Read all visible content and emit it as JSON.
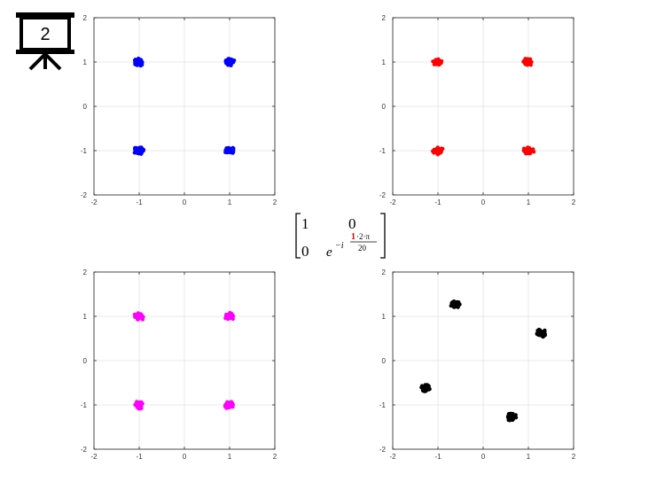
{
  "slide_badge": {
    "number": "2",
    "icon": "presentation-board-icon"
  },
  "matrix": {
    "a11": "1",
    "a12": "0",
    "a21": "0",
    "a22_base": "e",
    "a22_exp_prefix": "−i",
    "a22_exp_num_highlight": "1",
    "a22_exp_num_rest": "·2·π",
    "a22_exp_den": "20",
    "highlight_color": "#e00000"
  },
  "chart_data": [
    {
      "type": "scatter",
      "color": "#0000ff",
      "xlim": [
        -2,
        2
      ],
      "ylim": [
        -2,
        2
      ],
      "xticks": [
        "-2",
        "-1",
        "0",
        "1",
        "2"
      ],
      "yticks": [
        "2",
        "1",
        "0",
        "-1",
        "-2"
      ],
      "grid": true,
      "clusters": [
        {
          "x": -1,
          "y": 1
        },
        {
          "x": 1,
          "y": 1
        },
        {
          "x": -1,
          "y": -1
        },
        {
          "x": 1,
          "y": -1
        }
      ]
    },
    {
      "type": "scatter",
      "color": "#ff0000",
      "xlim": [
        -2,
        2
      ],
      "ylim": [
        -2,
        2
      ],
      "xticks": [
        "-2",
        "-1",
        "0",
        "1",
        "2"
      ],
      "yticks": [
        "2",
        "1",
        "0",
        "-1",
        "-2"
      ],
      "grid": true,
      "clusters": [
        {
          "x": -1,
          "y": 1
        },
        {
          "x": 1,
          "y": 1
        },
        {
          "x": -1,
          "y": -1
        },
        {
          "x": 1,
          "y": -1
        }
      ]
    },
    {
      "type": "scatter",
      "color": "#ff00ff",
      "xlim": [
        -2,
        2
      ],
      "ylim": [
        -2,
        2
      ],
      "xticks": [
        "-2",
        "-1",
        "0",
        "1",
        "2"
      ],
      "yticks": [
        "2",
        "1",
        "0",
        "-1",
        "-2"
      ],
      "grid": true,
      "clusters": [
        {
          "x": -1,
          "y": 1
        },
        {
          "x": 1,
          "y": 1
        },
        {
          "x": -1,
          "y": -1
        },
        {
          "x": 1,
          "y": -1
        }
      ]
    },
    {
      "type": "scatter",
      "color": "#000000",
      "xlim": [
        -2,
        2
      ],
      "ylim": [
        -2,
        2
      ],
      "xticks": [
        "-2",
        "-1",
        "0",
        "1",
        "2"
      ],
      "yticks": [
        "2",
        "1",
        "0",
        "-1",
        "-2"
      ],
      "grid": true,
      "clusters": [
        {
          "x": -0.62,
          "y": 1.27
        },
        {
          "x": 1.27,
          "y": 0.62
        },
        {
          "x": -1.27,
          "y": -0.62
        },
        {
          "x": 0.62,
          "y": -1.27
        }
      ]
    }
  ]
}
